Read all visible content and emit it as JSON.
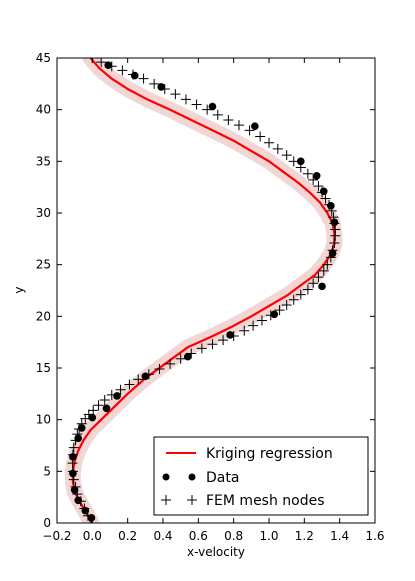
{
  "chart_data": {
    "type": "line",
    "xlabel": "x-velocity",
    "ylabel": "y",
    "xlim": [
      -0.2,
      1.6
    ],
    "ylim": [
      0,
      45
    ],
    "xticks": [
      -0.2,
      0.0,
      0.2,
      0.4,
      0.6,
      0.8,
      1.0,
      1.2,
      1.4,
      1.6
    ],
    "xtick_labels": [
      "−0.2",
      "0.0",
      "0.2",
      "0.4",
      "0.6",
      "0.8",
      "1.0",
      "1.2",
      "1.4",
      "1.6"
    ],
    "yticks": [
      0,
      5,
      10,
      15,
      20,
      25,
      30,
      35,
      40,
      45
    ],
    "ytick_labels": [
      "0",
      "5",
      "10",
      "15",
      "20",
      "25",
      "30",
      "35",
      "40",
      "45"
    ],
    "grid": false,
    "legend_position": "lower-right",
    "colors": {
      "regression": "#ff0000",
      "band": "#e8b4b4",
      "data": "#000000",
      "mesh": "#000000"
    },
    "series": [
      {
        "name": "Kriging regression",
        "kind": "line",
        "x": [
          -0.005,
          -0.035,
          -0.07,
          -0.1,
          -0.11,
          -0.11,
          -0.1,
          -0.08,
          -0.05,
          -0.01,
          0.05,
          0.11,
          0.2,
          0.3,
          0.42,
          0.54,
          0.67,
          0.79,
          0.9,
          1.0,
          1.1,
          1.18,
          1.26,
          1.31,
          1.35,
          1.37,
          1.37,
          1.36,
          1.33,
          1.29,
          1.23,
          1.16,
          1.08,
          1.0,
          0.9,
          0.8,
          0.68,
          0.56,
          0.44,
          0.31,
          0.2,
          0.11,
          0.04,
          -0.01
        ],
        "y": [
          0,
          1,
          2,
          3,
          4,
          5,
          6,
          7,
          8,
          9,
          10,
          11,
          12.5,
          14,
          15.5,
          17,
          18,
          19,
          20,
          21,
          22,
          23,
          24,
          25,
          26,
          27,
          28,
          29,
          30,
          31,
          32,
          33,
          34,
          35,
          36,
          37,
          38,
          39,
          40,
          41,
          42,
          43,
          44,
          45
        ]
      },
      {
        "name": "Data",
        "kind": "scatter",
        "x": [
          -0.005,
          -0.04,
          -0.08,
          -0.1,
          -0.11,
          -0.11,
          -0.08,
          -0.06,
          0.0,
          0.08,
          0.14,
          0.3,
          0.54,
          0.78,
          1.03,
          1.3,
          1.36,
          1.37,
          1.35,
          1.31,
          1.27,
          1.18,
          0.92,
          0.68,
          0.39,
          0.24,
          0.09
        ],
        "y": [
          0.5,
          1.2,
          2.2,
          3.2,
          4.8,
          6.4,
          8.2,
          9.2,
          10.2,
          11.1,
          12.3,
          14.2,
          16.1,
          18.2,
          20.2,
          22.9,
          26.1,
          29.1,
          30.7,
          32.1,
          33.6,
          35.0,
          38.4,
          40.3,
          42.2,
          43.3,
          44.3
        ]
      },
      {
        "name": "FEM mesh nodes",
        "kind": "plus",
        "x": [
          -0.005,
          -0.025,
          -0.045,
          -0.065,
          -0.085,
          -0.095,
          -0.105,
          -0.11,
          -0.112,
          -0.11,
          -0.105,
          -0.095,
          -0.085,
          -0.075,
          -0.06,
          -0.04,
          -0.02,
          0.005,
          0.035,
          0.07,
          0.11,
          0.16,
          0.21,
          0.26,
          0.32,
          0.38,
          0.44,
          0.5,
          0.56,
          0.62,
          0.68,
          0.74,
          0.8,
          0.86,
          0.91,
          0.96,
          1.01,
          1.06,
          1.1,
          1.14,
          1.18,
          1.22,
          1.25,
          1.28,
          1.31,
          1.33,
          1.35,
          1.36,
          1.37,
          1.375,
          1.375,
          1.37,
          1.365,
          1.355,
          1.34,
          1.32,
          1.3,
          1.28,
          1.25,
          1.22,
          1.18,
          1.14,
          1.1,
          1.05,
          1.0,
          0.95,
          0.89,
          0.83,
          0.77,
          0.71,
          0.65,
          0.59,
          0.53,
          0.47,
          0.41,
          0.35,
          0.29,
          0.23,
          0.17,
          0.11,
          0.05,
          0.0
        ],
        "y": [
          0,
          0.7,
          1.4,
          2.1,
          2.8,
          3.5,
          4.2,
          5.0,
          5.8,
          6.6,
          7.3,
          8.0,
          8.6,
          9.1,
          9.6,
          10.1,
          10.5,
          10.9,
          11.4,
          11.9,
          12.4,
          12.9,
          13.4,
          13.9,
          14.4,
          14.9,
          15.4,
          15.9,
          16.4,
          16.9,
          17.3,
          17.7,
          18.1,
          18.6,
          19.1,
          19.6,
          20.1,
          20.6,
          21.1,
          21.6,
          22.1,
          22.6,
          23.2,
          23.8,
          24.4,
          25.0,
          25.7,
          26.4,
          27.1,
          27.8,
          28.4,
          29.0,
          29.6,
          30.2,
          30.8,
          31.4,
          32.0,
          32.6,
          33.2,
          33.8,
          34.4,
          35.0,
          35.6,
          36.2,
          36.8,
          37.4,
          38.0,
          38.5,
          39.0,
          39.5,
          40.0,
          40.5,
          41.0,
          41.5,
          42.0,
          42.5,
          43.0,
          43.4,
          43.8,
          44.2,
          44.6,
          45.0
        ]
      }
    ],
    "legend": [
      "Kriging regression",
      "Data",
      "FEM mesh nodes"
    ]
  }
}
